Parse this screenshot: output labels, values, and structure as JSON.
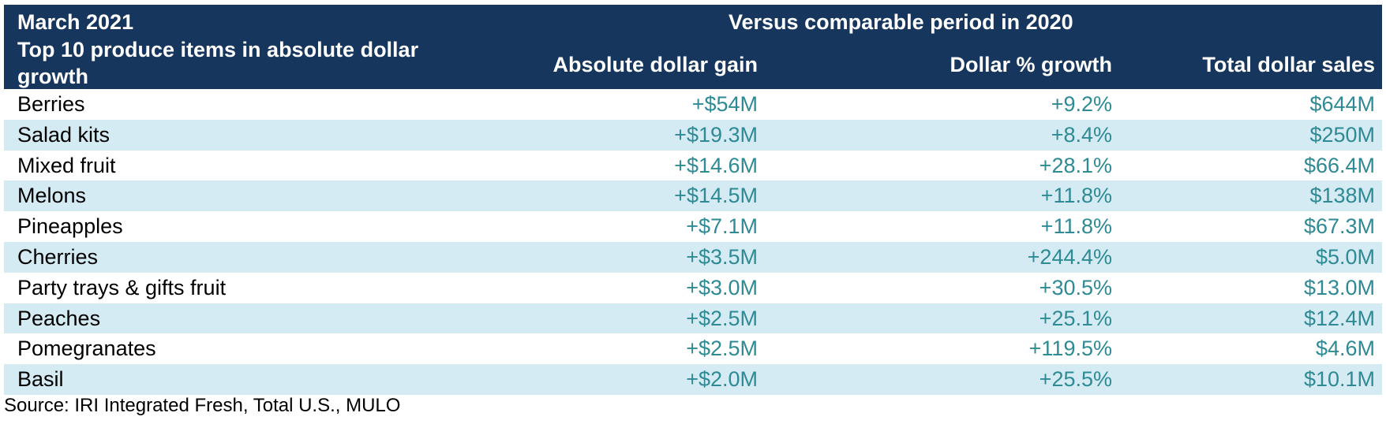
{
  "chart_data": {
    "type": "table",
    "title": "March 2021",
    "subtitle": "Top 10 produce items in absolute dollar growth",
    "group_header": "Versus comparable period in 2020",
    "columns": [
      "Absolute dollar gain",
      "Dollar % growth",
      "Total dollar sales"
    ],
    "rows": [
      {
        "item": "Berries",
        "gain": "+$54M",
        "growth": "+9.2%",
        "sales": "$644M"
      },
      {
        "item": "Salad kits",
        "gain": "+$19.3M",
        "growth": "+8.4%",
        "sales": "$250M"
      },
      {
        "item": "Mixed fruit",
        "gain": "+$14.6M",
        "growth": "+28.1%",
        "sales": "$66.4M"
      },
      {
        "item": "Melons",
        "gain": "+$14.5M",
        "growth": "+11.8%",
        "sales": "$138M"
      },
      {
        "item": "Pineapples",
        "gain": "+$7.1M",
        "growth": "+11.8%",
        "sales": "$67.3M"
      },
      {
        "item": "Cherries",
        "gain": "+$3.5M",
        "growth": "+244.4%",
        "sales": "$5.0M"
      },
      {
        "item": "Party trays & gifts fruit",
        "gain": "+$3.0M",
        "growth": "+30.5%",
        "sales": "$13.0M"
      },
      {
        "item": "Peaches",
        "gain": "+$2.5M",
        "growth": "+25.1%",
        "sales": "$12.4M"
      },
      {
        "item": "Pomegranates",
        "gain": "+$2.5M",
        "growth": "+119.5%",
        "sales": "$4.6M"
      },
      {
        "item": "Basil",
        "gain": "+$2.0M",
        "growth": "+25.5%",
        "sales": "$10.1M"
      }
    ],
    "source": "Source: IRI Integrated Fresh, Total U.S., MULO"
  },
  "colors": {
    "header_bg": "#17365d",
    "header_text": "#ffffff",
    "stripe": "#d4ebf3",
    "value_text": "#2e8a94"
  }
}
